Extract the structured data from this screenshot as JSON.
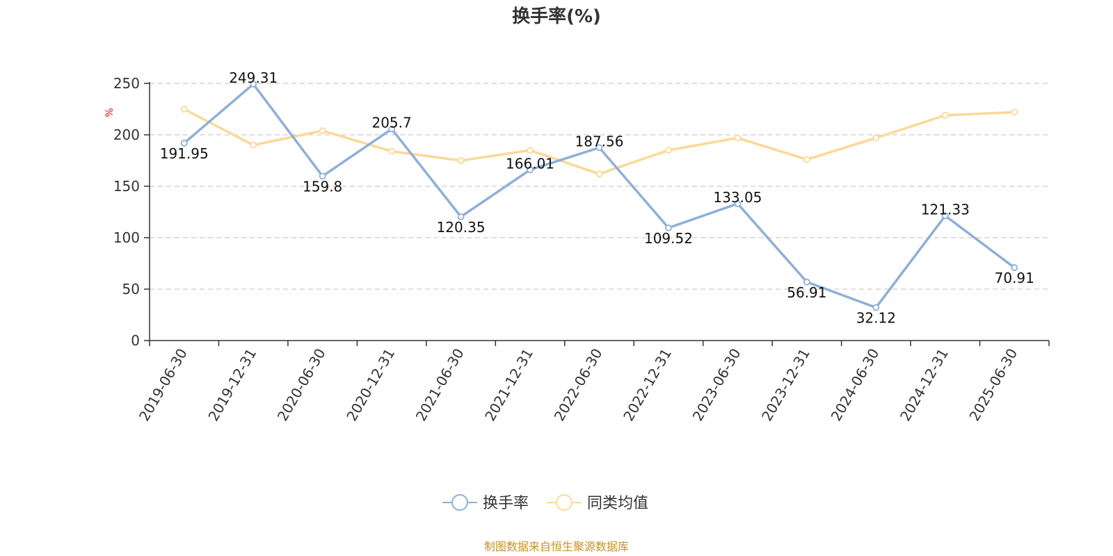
{
  "chart_data": {
    "type": "line",
    "title": "换手率(%)",
    "ylabel": "%",
    "ylim": [
      0,
      250
    ],
    "yticks": [
      0,
      50,
      100,
      150,
      200,
      250
    ],
    "grid": true,
    "legend_position": "bottom",
    "categories": [
      "2019-06-30",
      "2019-12-31",
      "2020-06-30",
      "2020-12-31",
      "2021-06-30",
      "2021-12-31",
      "2022-06-30",
      "2022-12-31",
      "2023-06-30",
      "2023-12-31",
      "2024-06-30",
      "2024-12-31",
      "2025-06-30"
    ],
    "series": [
      {
        "name": "换手率",
        "color": "#8eafd8",
        "show_labels": true,
        "values": [
          191.95,
          249.31,
          159.8,
          205.7,
          120.35,
          166.01,
          187.56,
          109.52,
          133.05,
          56.91,
          32.12,
          121.33,
          70.91
        ]
      },
      {
        "name": "同类均值",
        "color": "#fcd897",
        "show_labels": false,
        "values": [
          225,
          190,
          204,
          184,
          175,
          185,
          162,
          185,
          197,
          176,
          197,
          219,
          222
        ]
      }
    ],
    "source": "制图数据来自恒生聚源数据库"
  }
}
